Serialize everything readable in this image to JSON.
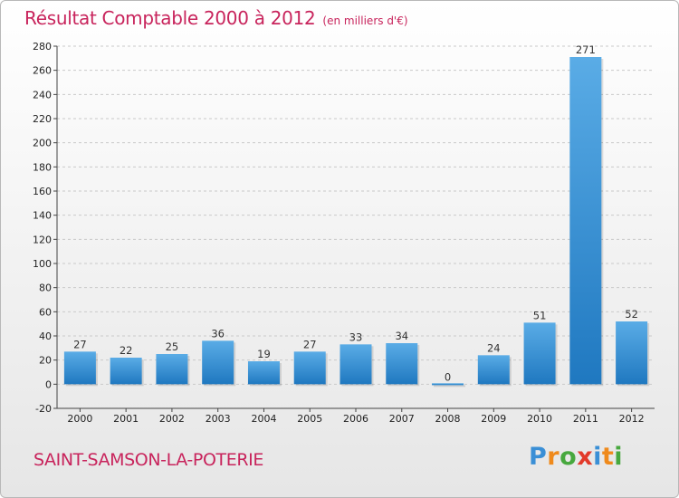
{
  "title": "Résultat Comptable 2000 à 2012",
  "unit_note": "(en milliers d'€)",
  "commune": "SAINT-SAMSON-LA-POTERIE",
  "logo": {
    "letters": [
      "P",
      "r",
      "o",
      "x",
      "i",
      "t",
      "i"
    ],
    "colors": [
      "#3a8fd6",
      "#ef8a1c",
      "#47a83e",
      "#e23a2a",
      "#3a8fd6",
      "#ef8a1c",
      "#47a83e"
    ]
  },
  "colors": {
    "bar_top": "#5aace6",
    "bar_bottom": "#1f78c0",
    "title": "#c8245c",
    "grid": "#c9c9c9"
  },
  "chart_data": {
    "type": "bar",
    "title": "Résultat Comptable 2000 à 2012",
    "subtitle": "(en milliers d'€)",
    "categories": [
      "2000",
      "2001",
      "2002",
      "2003",
      "2004",
      "2005",
      "2006",
      "2007",
      "2008",
      "2009",
      "2010",
      "2011",
      "2012"
    ],
    "values": [
      27,
      22,
      25,
      36,
      19,
      27,
      33,
      34,
      0,
      24,
      51,
      271,
      52
    ],
    "ylim": [
      -20,
      280
    ],
    "yticks": [
      -20,
      0,
      20,
      40,
      60,
      80,
      100,
      120,
      140,
      160,
      180,
      200,
      220,
      240,
      260,
      280
    ],
    "grid": "horizontal dashed",
    "legend": "none"
  }
}
